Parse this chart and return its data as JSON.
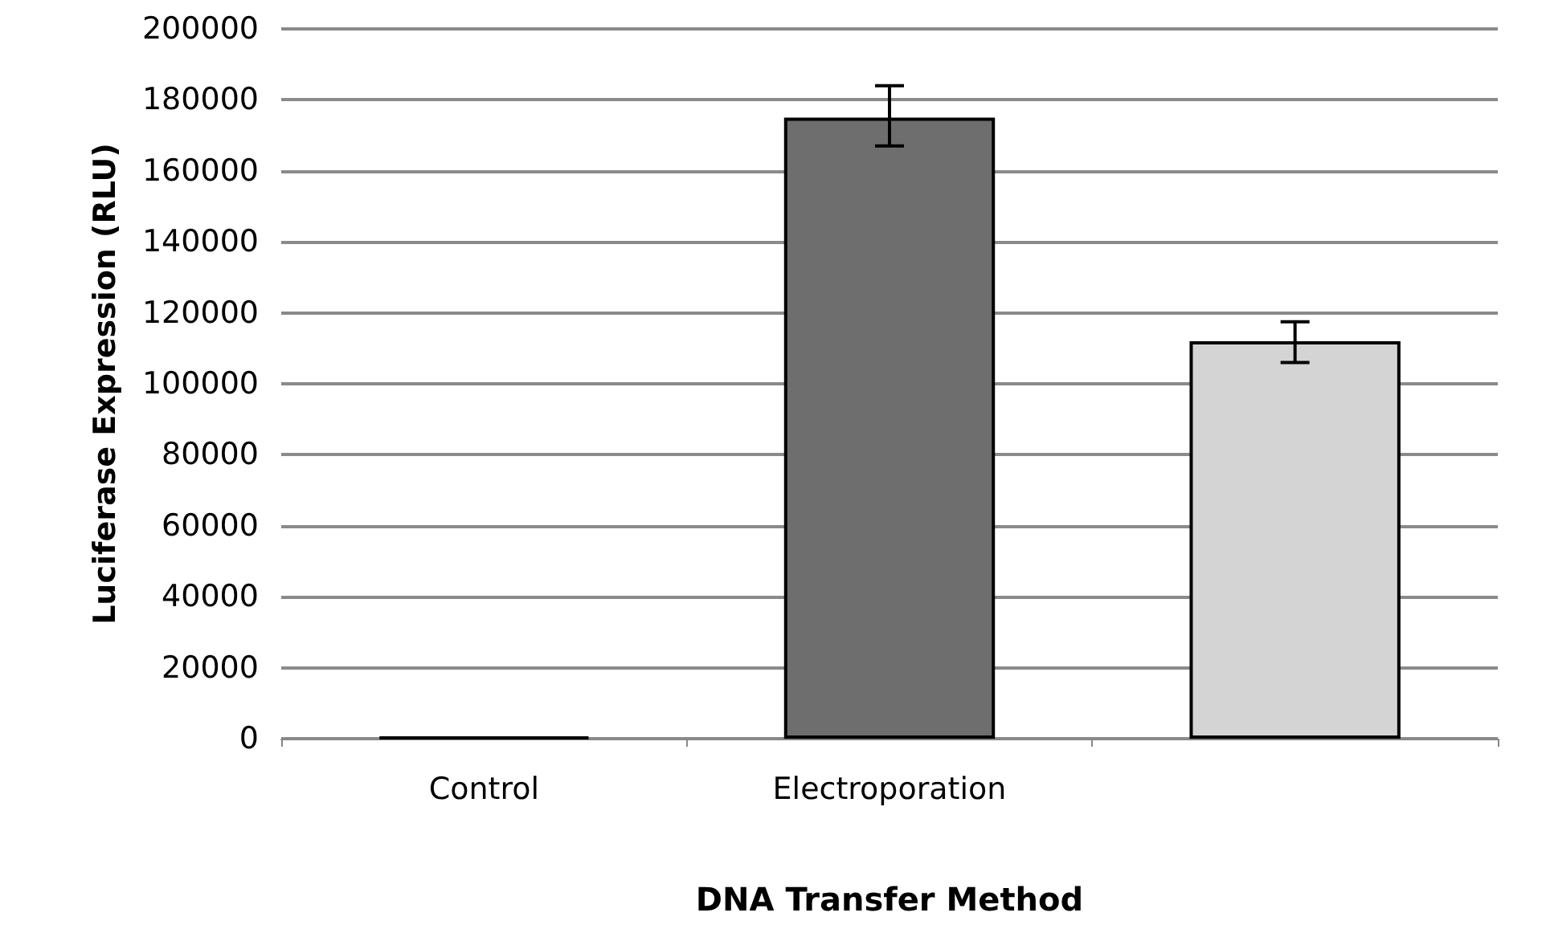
{
  "chart_data": {
    "type": "bar",
    "xlabel": "DNA Transfer Method",
    "ylabel": "Luciferase Expression (RLU)",
    "categories": [
      "Control",
      "Electroporation",
      null
    ],
    "values": [
      500,
      175000,
      112000
    ],
    "colors": [
      "#000000",
      "#6e6e6e",
      "#d4d4d4"
    ],
    "errors": [
      null,
      [
        167000,
        184000
      ],
      [
        106000,
        117500
      ]
    ],
    "ylim": [
      0,
      200000
    ],
    "yticks": [
      0,
      20000,
      40000,
      60000,
      80000,
      100000,
      120000,
      140000,
      160000,
      180000,
      200000
    ],
    "grid": "y"
  }
}
